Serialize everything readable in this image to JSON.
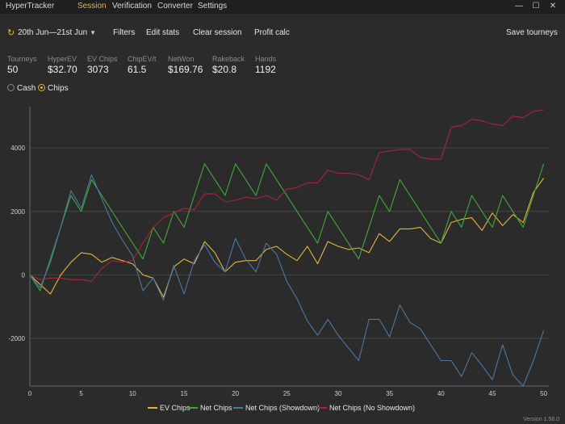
{
  "app_title": "HyperTracker",
  "nav": [
    "Session",
    "Verification",
    "Converter",
    "Settings"
  ],
  "window_controls": {
    "minimize": "—",
    "maximize": "☐",
    "close": "✕"
  },
  "toolbar": {
    "date_range": "20th Jun—21st Jun",
    "filters": "Filters",
    "edit_stats": "Edit stats",
    "clear_session": "Clear session",
    "profit_calc": "Profit calc",
    "save_tourneys": "Save tourneys"
  },
  "stats": [
    {
      "label": "Tourneys",
      "value": "50"
    },
    {
      "label": "HyperEV",
      "value": "$32.70"
    },
    {
      "label": "EV Chips",
      "value": "3073"
    },
    {
      "label": "ChipEV/t",
      "value": "61.5"
    },
    {
      "label": "NetWon",
      "value": "$169.76"
    },
    {
      "label": "Rakeback",
      "value": "$20.8"
    },
    {
      "label": "Hands",
      "value": "1192"
    }
  ],
  "mode": {
    "cash": "Cash",
    "chips": "Chips",
    "selected": "Chips"
  },
  "colors": {
    "accent": "#e8b33a",
    "ev": "#e8b33a",
    "net": "#3fa93a",
    "showdown": "#4a78a8",
    "noshowdown": "#a8243c"
  },
  "chart_data": {
    "type": "line",
    "x": [
      0,
      1,
      2,
      3,
      4,
      5,
      6,
      7,
      8,
      9,
      10,
      11,
      12,
      13,
      14,
      15,
      16,
      17,
      18,
      19,
      20,
      21,
      22,
      23,
      24,
      25,
      26,
      27,
      28,
      29,
      30,
      31,
      32,
      33,
      34,
      35,
      36,
      37,
      38,
      39,
      40,
      41,
      42,
      43,
      44,
      45,
      46,
      47,
      48,
      49,
      50
    ],
    "xticks": [
      0,
      5,
      10,
      15,
      20,
      25,
      30,
      35,
      40,
      45,
      50
    ],
    "yticks": [
      -2000,
      0,
      2000,
      4000
    ],
    "xlim": [
      0,
      50.5
    ],
    "ylim": [
      -3500,
      5300
    ],
    "series": [
      {
        "name": "EV Chips",
        "color": "#e8b33a",
        "values": [
          0,
          -300,
          -600,
          0,
          400,
          700,
          650,
          400,
          550,
          450,
          350,
          0,
          -100,
          -700,
          250,
          500,
          350,
          1050,
          700,
          100,
          400,
          450,
          450,
          800,
          900,
          650,
          450,
          900,
          350,
          1050,
          900,
          800,
          850,
          700,
          1300,
          1050,
          1450,
          1450,
          1500,
          1150,
          1000,
          1650,
          1750,
          1800,
          1400,
          1950,
          1550,
          1900,
          1650,
          2600,
          3050
        ]
      },
      {
        "name": "Net Chips",
        "color": "#3fa93a",
        "values": [
          0,
          -500,
          500,
          1500,
          2500,
          2000,
          3000,
          2500,
          2000,
          1500,
          1000,
          500,
          1500,
          1000,
          2000,
          1500,
          2500,
          3500,
          3000,
          2500,
          3500,
          3000,
          2500,
          3500,
          3000,
          2500,
          2000,
          1500,
          1000,
          2000,
          1500,
          1000,
          500,
          1500,
          2500,
          2000,
          3000,
          2500,
          2000,
          1500,
          1000,
          2000,
          1500,
          2500,
          2000,
          1500,
          2500,
          2000,
          1500,
          2500,
          3500
        ]
      },
      {
        "name": "Net Chips (Showdown)",
        "color": "#4a78a8",
        "values": [
          0,
          -400,
          400,
          1500,
          2650,
          2100,
          3150,
          2400,
          1650,
          1100,
          600,
          -500,
          -100,
          -800,
          300,
          -600,
          450,
          950,
          400,
          100,
          1150,
          500,
          100,
          1000,
          650,
          -200,
          -750,
          -1450,
          -1900,
          -1400,
          -1900,
          -2300,
          -2700,
          -1400,
          -1400,
          -1950,
          -950,
          -1500,
          -1700,
          -2200,
          -2700,
          -2700,
          -3200,
          -2450,
          -2850,
          -3300,
          -2200,
          -3150,
          -3500,
          -2700,
          -1750
        ]
      },
      {
        "name": "Net Chips (No Showdown)",
        "color": "#a8243c",
        "values": [
          0,
          -150,
          -100,
          -100,
          -150,
          -150,
          -200,
          200,
          450,
          400,
          450,
          1000,
          1500,
          1800,
          1950,
          2100,
          2050,
          2550,
          2550,
          2300,
          2350,
          2450,
          2400,
          2500,
          2350,
          2700,
          2750,
          2900,
          2900,
          3300,
          3200,
          3200,
          3150,
          3000,
          3850,
          3900,
          3950,
          3950,
          3700,
          3650,
          3650,
          4650,
          4700,
          4900,
          4850,
          4750,
          4700,
          5000,
          4950,
          5150,
          5200
        ]
      }
    ]
  },
  "version": "Version 1.58.0"
}
